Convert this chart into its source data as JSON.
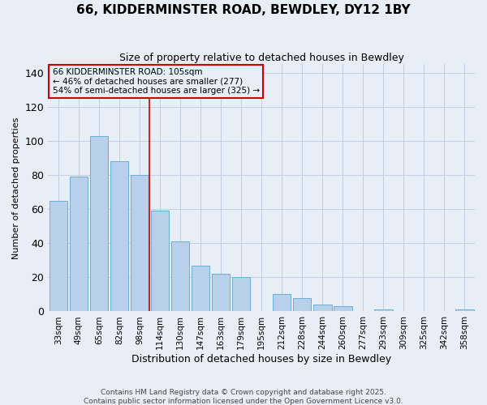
{
  "title1": "66, KIDDERMINSTER ROAD, BEWDLEY, DY12 1BY",
  "title2": "Size of property relative to detached houses in Bewdley",
  "xlabel": "Distribution of detached houses by size in Bewdley",
  "ylabel": "Number of detached properties",
  "categories": [
    "33sqm",
    "49sqm",
    "65sqm",
    "82sqm",
    "98sqm",
    "114sqm",
    "130sqm",
    "147sqm",
    "163sqm",
    "179sqm",
    "195sqm",
    "212sqm",
    "228sqm",
    "244sqm",
    "260sqm",
    "277sqm",
    "293sqm",
    "309sqm",
    "325sqm",
    "342sqm",
    "358sqm"
  ],
  "values": [
    65,
    79,
    103,
    88,
    80,
    59,
    41,
    27,
    22,
    20,
    0,
    10,
    8,
    4,
    3,
    0,
    1,
    0,
    0,
    0,
    1
  ],
  "bar_color": "#b8d0ea",
  "bar_edge_color": "#6aaed6",
  "vline_x": 4.5,
  "vline_color": "#cc0000",
  "annotation_line1": "66 KIDDERMINSTER ROAD: 105sqm",
  "annotation_line2": "← 46% of detached houses are smaller (277)",
  "annotation_line3": "54% of semi-detached houses are larger (325) →",
  "box_edge_color": "#cc0000",
  "ylim": [
    0,
    145
  ],
  "yticks": [
    0,
    20,
    40,
    60,
    80,
    100,
    120,
    140
  ],
  "footer1": "Contains HM Land Registry data © Crown copyright and database right 2025.",
  "footer2": "Contains public sector information licensed under the Open Government Licence v3.0.",
  "bg_color": "#e8eef5",
  "grid_color": "#c0cfe0"
}
